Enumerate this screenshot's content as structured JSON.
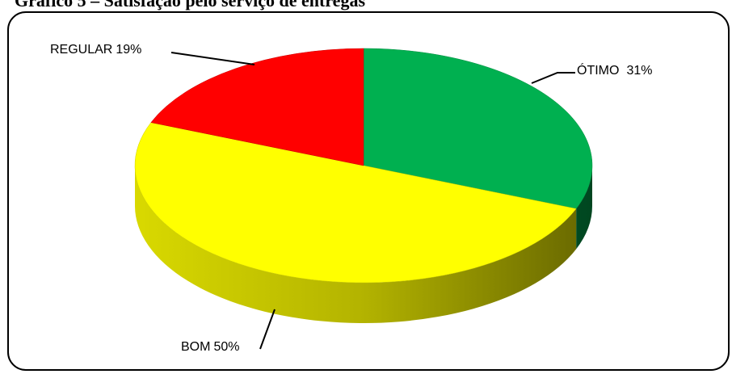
{
  "chart_data": {
    "type": "pie3d",
    "title": "Gráfico 5 – Satisfação pelo serviço de entregas",
    "categories": [
      "ÓTIMO",
      "BOM",
      "REGULAR"
    ],
    "values": [
      31,
      50,
      19
    ],
    "value_labels": [
      "31%",
      "50%",
      "19%"
    ],
    "colors": [
      "#00b050",
      "#ffff00",
      "#ff0000"
    ]
  }
}
